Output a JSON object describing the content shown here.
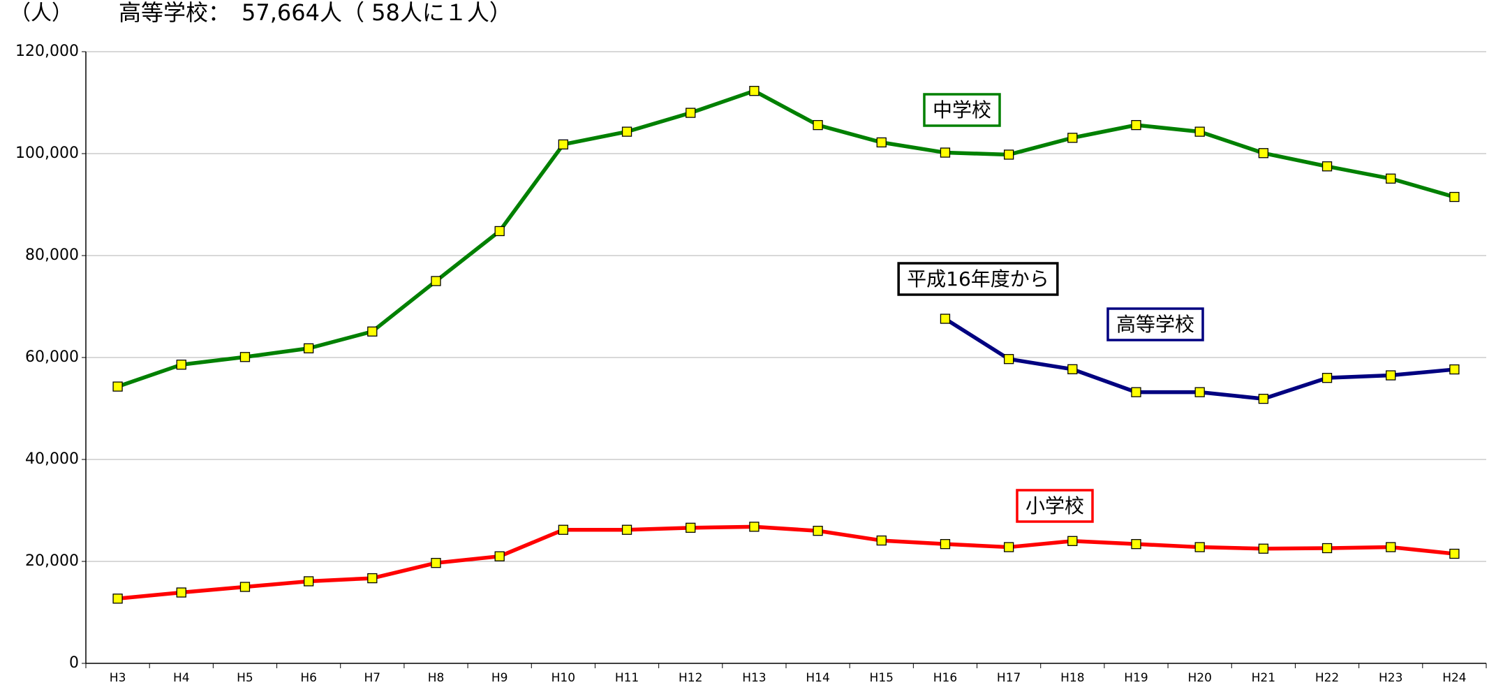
{
  "chart_data": {
    "type": "line",
    "y_axis_label": "（人）",
    "subtitle": "高等学校：　57,664人（ 58人に１人）",
    "annotations": [
      "平成16年度から"
    ],
    "categories": [
      "H3",
      "H4",
      "H5",
      "H6",
      "H7",
      "H8",
      "H9",
      "H10",
      "H11",
      "H12",
      "H13",
      "H14",
      "H15",
      "H16",
      "H17",
      "H18",
      "H19",
      "H20",
      "H21",
      "H22",
      "H23",
      "H24"
    ],
    "series": [
      {
        "name": "中学校",
        "color": "#008000",
        "values": [
          54300,
          58600,
          60100,
          61800,
          65100,
          75000,
          84800,
          101800,
          104300,
          108000,
          112300,
          105600,
          102200,
          100200,
          99800,
          103100,
          105600,
          104300,
          100100,
          97500,
          95100,
          91500
        ]
      },
      {
        "name": "高等学校",
        "color": "#000080",
        "values": [
          null,
          null,
          null,
          null,
          null,
          null,
          null,
          null,
          null,
          null,
          null,
          null,
          null,
          67600,
          59700,
          57700,
          53200,
          53200,
          51900,
          56000,
          56500,
          57664
        ]
      },
      {
        "name": "小学校",
        "color": "#ff0000",
        "values": [
          12700,
          13900,
          15000,
          16100,
          16700,
          19700,
          21000,
          26200,
          26200,
          26600,
          26800,
          26000,
          24100,
          23400,
          22800,
          24000,
          23400,
          22800,
          22500,
          22600,
          22800,
          21500
        ]
      }
    ],
    "marker_color": "#ffff00",
    "ylim": [
      0,
      120000
    ],
    "yticks": [
      0,
      {
        "value": 20000,
        "label": "20,000"
      },
      {
        "value": 40000,
        "label": "40,000"
      },
      {
        "value": 60000,
        "label": "60,000"
      },
      {
        "value": 80000,
        "label": "80,000"
      },
      {
        "value": 100000,
        "label": "100,000"
      },
      {
        "value": 120000,
        "label": "120,000"
      }
    ],
    "grid": true
  }
}
